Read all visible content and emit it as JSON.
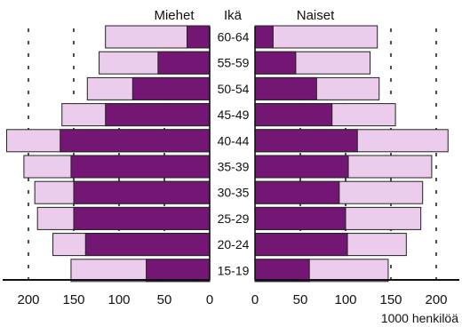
{
  "chart_data": {
    "type": "bar",
    "subtype": "population-pyramid",
    "header": {
      "left": "Miehet",
      "center": "Ikä",
      "right": "Naiset"
    },
    "categories": [
      "60-64",
      "55-59",
      "50-54",
      "45-49",
      "40-44",
      "35-39",
      "30-35",
      "25-29",
      "20-24",
      "15-19"
    ],
    "series": [
      {
        "name": "Miehet",
        "side": "left",
        "outer": [
          115,
          122,
          135,
          163,
          224,
          205,
          193,
          190,
          173,
          153
        ],
        "inner": [
          25,
          57,
          85,
          115,
          165,
          153,
          150,
          150,
          137,
          70
        ]
      },
      {
        "name": "Naiset",
        "side": "right",
        "outer": [
          135,
          127,
          137,
          155,
          213,
          195,
          185,
          183,
          167,
          147
        ],
        "inner": [
          20,
          45,
          68,
          85,
          113,
          103,
          93,
          100,
          102,
          60
        ]
      }
    ],
    "xlim": [
      0,
      200
    ],
    "ticks": [
      "200",
      "150",
      "100",
      "50",
      "0"
    ],
    "right_ticks": [
      "0",
      "50",
      "100",
      "150",
      "200"
    ],
    "unit": "1000 henkilöä",
    "grid": "dashed vertical lines at 50-unit steps",
    "colors": {
      "outer": "#ecccec",
      "inner": "#741674",
      "outline": "#222222"
    }
  }
}
